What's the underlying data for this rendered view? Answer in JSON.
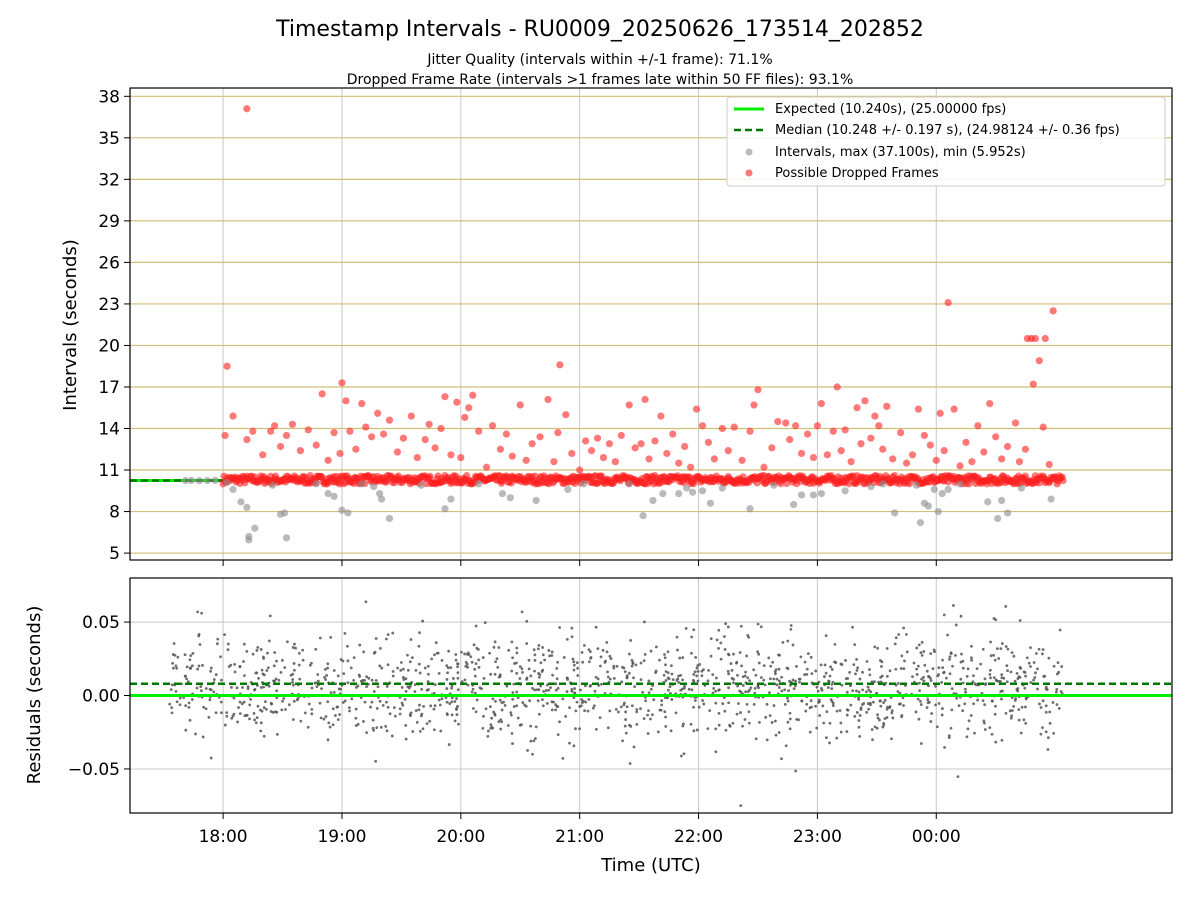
{
  "figure": {
    "title": "Timestamp Intervals - RU0009_20250626_173514_202852",
    "subtitle_jitter": "Jitter Quality (intervals within +/-1 frame): 71.1%",
    "subtitle_dropped": "Dropped Frame Rate (intervals >1 frames late within 50 FF files): 93.1%"
  },
  "colors": {
    "expected": "#00ee00",
    "median": "#007700",
    "intervals": "#8c8c8c",
    "dropped": "#ff2020",
    "interval_grid": "#d2bf78",
    "time_grid": "#c8c8c8",
    "residual_points": "#555555"
  },
  "chart_data": [
    {
      "type": "scatter",
      "title": "",
      "xlabel": "",
      "ylabel": "Intervals (seconds)",
      "xlim": [
        "17:13",
        "01:59"
      ],
      "ylim": [
        4.5,
        38.6
      ],
      "x_ticks": [
        "18:00",
        "19:00",
        "20:00",
        "21:00",
        "22:00",
        "23:00",
        "00:00"
      ],
      "y_ticks": [
        5,
        8,
        11,
        14,
        17,
        20,
        23,
        26,
        29,
        32,
        35,
        38
      ],
      "y_tick_labels": [
        "5",
        "8",
        "11",
        "14",
        "17",
        "20",
        "23",
        "26",
        "29",
        "32",
        "35",
        "38"
      ],
      "grid": "horizontal lines at y ticks (tan), vertical lines at time ticks (light gray)",
      "legend_position": "top-right",
      "legend": [
        {
          "key": "expected",
          "label": "Expected (10.240s), (25.00000 fps)"
        },
        {
          "key": "median",
          "label": "Median (10.248 +/- 0.197 s), (24.98124 +/- 0.36 fps)"
        },
        {
          "key": "intervals",
          "label": "Intervals, max (37.100s), min (5.952s)"
        },
        {
          "key": "dropped",
          "label": "Possible Dropped Frames"
        }
      ],
      "expected_value": 10.24,
      "median_value": 10.248,
      "series": [
        {
          "name": "Possible Dropped Frames",
          "color": "#ff2020",
          "points": [
            [
              "18:01",
              13.5
            ],
            [
              "18:02",
              18.5
            ],
            [
              "18:05",
              14.9
            ],
            [
              "18:12",
              13.2
            ],
            [
              "18:12",
              37.1
            ],
            [
              "18:15",
              13.8
            ],
            [
              "18:20",
              12.1
            ],
            [
              "18:24",
              13.8
            ],
            [
              "18:26",
              14.2
            ],
            [
              "18:29",
              12.7
            ],
            [
              "18:32",
              13.5
            ],
            [
              "18:35",
              14.3
            ],
            [
              "18:39",
              12.4
            ],
            [
              "18:43",
              13.9
            ],
            [
              "18:47",
              12.8
            ],
            [
              "18:50",
              16.5
            ],
            [
              "18:53",
              11.7
            ],
            [
              "18:56",
              13.7
            ],
            [
              "18:59",
              12.2
            ],
            [
              "19:00",
              17.3
            ],
            [
              "19:02",
              16.0
            ],
            [
              "19:04",
              13.8
            ],
            [
              "19:07",
              12.5
            ],
            [
              "19:10",
              15.8
            ],
            [
              "19:12",
              14.1
            ],
            [
              "19:15",
              13.4
            ],
            [
              "19:18",
              15.1
            ],
            [
              "19:21",
              13.6
            ],
            [
              "19:24",
              14.6
            ],
            [
              "19:28",
              12.3
            ],
            [
              "19:31",
              13.3
            ],
            [
              "19:35",
              14.9
            ],
            [
              "19:38",
              11.9
            ],
            [
              "19:42",
              13.2
            ],
            [
              "19:44",
              14.3
            ],
            [
              "19:47",
              12.6
            ],
            [
              "19:50",
              14.0
            ],
            [
              "19:52",
              16.3
            ],
            [
              "19:55",
              12.1
            ],
            [
              "19:58",
              15.9
            ],
            [
              "20:00",
              11.9
            ],
            [
              "20:02",
              14.8
            ],
            [
              "20:04",
              15.5
            ],
            [
              "20:06",
              16.4
            ],
            [
              "20:09",
              13.8
            ],
            [
              "20:13",
              11.2
            ],
            [
              "20:16",
              14.2
            ],
            [
              "20:20",
              12.5
            ],
            [
              "20:23",
              13.6
            ],
            [
              "20:26",
              12.0
            ],
            [
              "20:30",
              15.7
            ],
            [
              "20:33",
              11.7
            ],
            [
              "20:36",
              12.9
            ],
            [
              "20:40",
              13.4
            ],
            [
              "20:44",
              16.1
            ],
            [
              "20:47",
              11.6
            ],
            [
              "20:49",
              13.7
            ],
            [
              "20:50",
              18.6
            ],
            [
              "20:53",
              15.0
            ],
            [
              "20:56",
              12.2
            ],
            [
              "21:00",
              11.0
            ],
            [
              "21:03",
              13.1
            ],
            [
              "21:06",
              12.4
            ],
            [
              "21:09",
              13.3
            ],
            [
              "21:12",
              11.9
            ],
            [
              "21:15",
              12.9
            ],
            [
              "21:18",
              11.6
            ],
            [
              "21:21",
              13.5
            ],
            [
              "21:25",
              15.7
            ],
            [
              "21:28",
              12.6
            ],
            [
              "21:31",
              12.9
            ],
            [
              "21:33",
              16.1
            ],
            [
              "21:35",
              11.8
            ],
            [
              "21:38",
              13.1
            ],
            [
              "21:41",
              14.9
            ],
            [
              "21:44",
              12.2
            ],
            [
              "21:47",
              13.6
            ],
            [
              "21:50",
              11.5
            ],
            [
              "21:53",
              12.7
            ],
            [
              "21:56",
              11.2
            ],
            [
              "21:59",
              15.4
            ],
            [
              "22:02",
              14.2
            ],
            [
              "22:05",
              13.0
            ],
            [
              "22:08",
              11.8
            ],
            [
              "22:12",
              14.0
            ],
            [
              "22:15",
              12.4
            ],
            [
              "22:18",
              14.1
            ],
            [
              "22:22",
              11.7
            ],
            [
              "22:26",
              13.8
            ],
            [
              "22:28",
              15.7
            ],
            [
              "22:30",
              16.8
            ],
            [
              "22:33",
              11.2
            ],
            [
              "22:37",
              12.6
            ],
            [
              "22:40",
              14.5
            ],
            [
              "22:44",
              14.4
            ],
            [
              "22:46",
              13.2
            ],
            [
              "22:49",
              14.2
            ],
            [
              "22:52",
              12.2
            ],
            [
              "22:55",
              13.6
            ],
            [
              "22:58",
              11.9
            ],
            [
              "23:00",
              14.2
            ],
            [
              "23:02",
              15.8
            ],
            [
              "23:05",
              12.1
            ],
            [
              "23:08",
              13.8
            ],
            [
              "23:10",
              17.0
            ],
            [
              "23:12",
              12.4
            ],
            [
              "23:14",
              13.9
            ],
            [
              "23:17",
              11.6
            ],
            [
              "23:20",
              15.5
            ],
            [
              "23:22",
              12.9
            ],
            [
              "23:24",
              16.0
            ],
            [
              "23:27",
              13.3
            ],
            [
              "23:29",
              14.9
            ],
            [
              "23:31",
              14.2
            ],
            [
              "23:33",
              12.5
            ],
            [
              "23:35",
              15.6
            ],
            [
              "23:38",
              11.8
            ],
            [
              "23:42",
              13.7
            ],
            [
              "23:45",
              11.5
            ],
            [
              "23:48",
              12.1
            ],
            [
              "23:51",
              15.4
            ],
            [
              "23:54",
              13.5
            ],
            [
              "23:57",
              12.8
            ],
            [
              "00:00",
              11.7
            ],
            [
              "00:02",
              15.1
            ],
            [
              "00:04",
              12.4
            ],
            [
              "00:06",
              23.1
            ],
            [
              "00:09",
              15.4
            ],
            [
              "00:12",
              11.3
            ],
            [
              "00:15",
              13.0
            ],
            [
              "00:18",
              11.6
            ],
            [
              "00:21",
              14.2
            ],
            [
              "00:24",
              12.3
            ],
            [
              "00:27",
              15.8
            ],
            [
              "00:30",
              13.4
            ],
            [
              "00:33",
              11.8
            ],
            [
              "00:36",
              12.7
            ],
            [
              "00:40",
              14.4
            ],
            [
              "00:42",
              11.6
            ],
            [
              "00:45",
              12.5
            ],
            [
              "00:46",
              20.5
            ],
            [
              "00:48",
              20.5
            ],
            [
              "00:49",
              17.2
            ],
            [
              "00:50",
              20.5
            ],
            [
              "00:52",
              18.9
            ],
            [
              "00:54",
              14.1
            ],
            [
              "00:55",
              20.5
            ],
            [
              "00:57",
              11.4
            ],
            [
              "00:59",
              22.5
            ]
          ]
        },
        {
          "name": "Intervals",
          "color": "#8c8c8c",
          "points": [
            [
              "17:41",
              10.24
            ],
            [
              "17:44",
              10.25
            ],
            [
              "17:48",
              10.23
            ],
            [
              "17:52",
              10.24
            ],
            [
              "17:56",
              10.25
            ],
            [
              "18:02",
              10.1
            ],
            [
              "18:05",
              9.6
            ],
            [
              "18:09",
              8.7
            ],
            [
              "18:12",
              8.3
            ],
            [
              "18:13",
              6.2
            ],
            [
              "18:13",
              5.95
            ],
            [
              "18:16",
              6.8
            ],
            [
              "18:25",
              9.9
            ],
            [
              "18:29",
              7.8
            ],
            [
              "18:31",
              7.9
            ],
            [
              "18:32",
              6.1
            ],
            [
              "18:47",
              10.0
            ],
            [
              "18:53",
              9.3
            ],
            [
              "18:56",
              9.1
            ],
            [
              "19:00",
              8.1
            ],
            [
              "19:03",
              7.9
            ],
            [
              "19:10",
              10.0
            ],
            [
              "19:16",
              9.8
            ],
            [
              "19:19",
              9.3
            ],
            [
              "19:20",
              8.9
            ],
            [
              "19:24",
              7.5
            ],
            [
              "19:40",
              9.9
            ],
            [
              "19:52",
              8.2
            ],
            [
              "19:55",
              8.9
            ],
            [
              "20:09",
              10.0
            ],
            [
              "20:21",
              9.3
            ],
            [
              "20:25",
              9.0
            ],
            [
              "20:38",
              8.8
            ],
            [
              "20:54",
              9.6
            ],
            [
              "21:02",
              10.0
            ],
            [
              "21:25",
              10.0
            ],
            [
              "21:32",
              7.7
            ],
            [
              "21:37",
              8.8
            ],
            [
              "21:42",
              9.3
            ],
            [
              "21:50",
              9.3
            ],
            [
              "21:54",
              9.7
            ],
            [
              "21:57",
              9.4
            ],
            [
              "22:02",
              9.5
            ],
            [
              "22:06",
              8.6
            ],
            [
              "22:12",
              9.7
            ],
            [
              "22:26",
              8.2
            ],
            [
              "22:38",
              9.9
            ],
            [
              "22:48",
              8.5
            ],
            [
              "22:52",
              9.2
            ],
            [
              "22:58",
              9.2
            ],
            [
              "23:02",
              9.3
            ],
            [
              "23:14",
              9.5
            ],
            [
              "23:27",
              9.8
            ],
            [
              "23:33",
              10.0
            ],
            [
              "23:39",
              7.9
            ],
            [
              "23:50",
              9.9
            ],
            [
              "23:52",
              7.2
            ],
            [
              "23:54",
              8.6
            ],
            [
              "23:56",
              8.4
            ],
            [
              "23:59",
              9.6
            ],
            [
              "00:01",
              8.0
            ],
            [
              "00:03",
              9.3
            ],
            [
              "00:06",
              9.6
            ],
            [
              "00:12",
              10.0
            ],
            [
              "00:26",
              8.7
            ],
            [
              "00:31",
              7.5
            ],
            [
              "00:33",
              8.8
            ],
            [
              "00:36",
              7.9
            ],
            [
              "00:43",
              9.7
            ],
            [
              "00:58",
              8.9
            ]
          ]
        }
      ],
      "dense_band": {
        "description": "continuous band of overlapping red points",
        "from": "18:00",
        "to": "01:04",
        "y_min": 10.0,
        "y_max": 10.6
      }
    },
    {
      "type": "scatter",
      "title": "",
      "xlabel": "Time (UTC)",
      "ylabel": "Residuals (seconds)",
      "xlim": [
        "17:13",
        "01:59"
      ],
      "ylim": [
        -0.08,
        0.08
      ],
      "x_ticks": [
        "18:00",
        "19:00",
        "20:00",
        "21:00",
        "22:00",
        "23:00",
        "00:00"
      ],
      "y_ticks": [
        -0.05,
        0.0,
        0.05
      ],
      "y_tick_labels": [
        "−0.05",
        "0.00",
        "0.05"
      ],
      "grid": "on",
      "expected_residual": 0.0,
      "median_residual": 0.008,
      "residual_distribution": {
        "center": 0.005,
        "typical_spread": 0.02,
        "from": "17:33",
        "to": "01:04",
        "approx_count": 1500
      }
    }
  ]
}
